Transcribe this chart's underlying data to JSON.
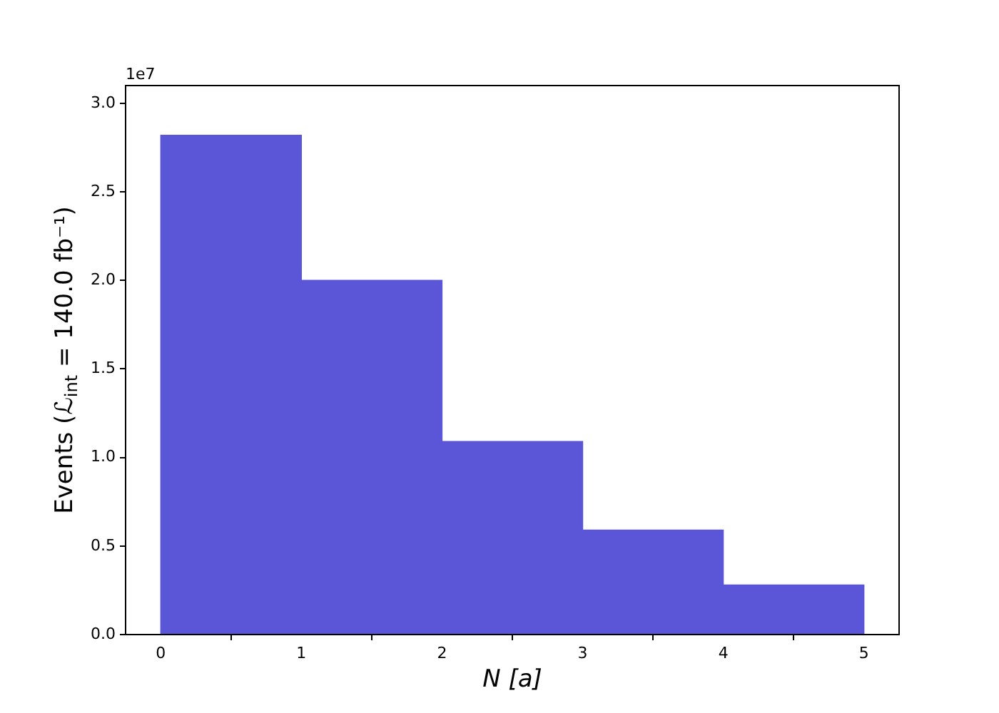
{
  "chart_data": {
    "type": "histogram",
    "xlabel": "N [a]",
    "ylabel": "Events (ℒ$_{int}$ = 140.0 fb⁻¹)",
    "bins": [
      0,
      1,
      2,
      3,
      4,
      5
    ],
    "values": [
      2.82,
      2.0,
      1.09,
      0.59,
      0.28
    ],
    "color": "#5b55d8",
    "xlim": [
      -0.25,
      5.25
    ],
    "xticks": [
      0,
      1,
      2,
      3,
      4,
      5
    ],
    "ylim": [
      0,
      3.1
    ],
    "yticks": [
      {
        "value": 0,
        "label": "0.0"
      },
      0.5,
      {
        "value": 1,
        "label": "1.0"
      },
      1.5,
      {
        "value": 2,
        "label": "2.0"
      },
      2.5,
      {
        "value": 3,
        "label": "3.0"
      }
    ],
    "annotations": [
      "1e7"
    ],
    "grid": false
  }
}
